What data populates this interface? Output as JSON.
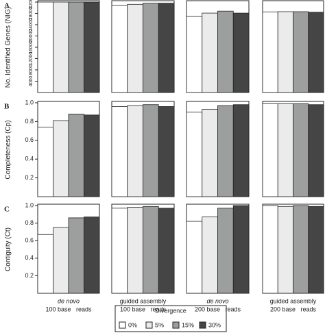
{
  "chart_data": [
    {
      "type": "bar",
      "label": "A",
      "ylabel": "No. Identified Genes (NIG)",
      "ylim": [
        0,
        32000
      ],
      "yticks": [
        4000,
        8000,
        12000,
        16000,
        20000,
        24000,
        28000,
        32000
      ],
      "series": [
        {
          "values": [
            32000,
            30800,
            26900,
            28500
          ]
        },
        {
          "values": [
            32000,
            31200,
            28100,
            28600
          ]
        },
        {
          "values": [
            32000,
            31600,
            28800,
            28600
          ]
        },
        {
          "values": [
            32000,
            31600,
            28100,
            28400
          ]
        }
      ]
    },
    {
      "type": "bar",
      "label": "B",
      "ylabel": "Completeness (Cp)",
      "ylim": [
        0,
        1
      ],
      "yticks": [
        0.2,
        0.4,
        0.6,
        0.8,
        {
          "value": 1,
          "label": "1.0"
        }
      ],
      "series": [
        {
          "values": [
            0.74,
            0.96,
            0.9,
            0.99
          ]
        },
        {
          "values": [
            0.81,
            0.97,
            0.93,
            0.99
          ]
        },
        {
          "values": [
            0.88,
            0.98,
            0.97,
            0.99
          ]
        },
        {
          "values": [
            0.87,
            0.96,
            0.98,
            0.98
          ]
        }
      ]
    },
    {
      "type": "bar",
      "label": "C",
      "ylabel": "Contiguity (Ct)",
      "ylim": [
        0,
        1
      ],
      "yticks": [
        0.2,
        0.4,
        0.6,
        0.8,
        {
          "value": 1,
          "label": "1.0"
        }
      ],
      "categories": [
        [
          "de novo",
          "100 base   reads"
        ],
        [
          "guided assembly",
          "100 base   reads"
        ],
        [
          "de novo",
          "200 base   reads"
        ],
        [
          "guided assembly",
          "200 base   reads"
        ]
      ],
      "series": [
        {
          "values": [
            0.67,
            0.97,
            0.82,
            1.0
          ]
        },
        {
          "values": [
            0.75,
            0.98,
            0.87,
            0.99
          ]
        },
        {
          "values": [
            0.86,
            0.99,
            0.97,
            1.0
          ]
        },
        {
          "values": [
            0.87,
            0.97,
            1.0,
            0.99
          ]
        }
      ]
    }
  ],
  "legend": {
    "title": "Divergence",
    "entries": [
      {
        "name": "0%",
        "color": "#ffffff"
      },
      {
        "name": "5%",
        "color": "#ebebeb"
      },
      {
        "name": "15%",
        "color": "#9c9f9e"
      },
      {
        "name": "30%",
        "color": "#454545"
      }
    ]
  }
}
